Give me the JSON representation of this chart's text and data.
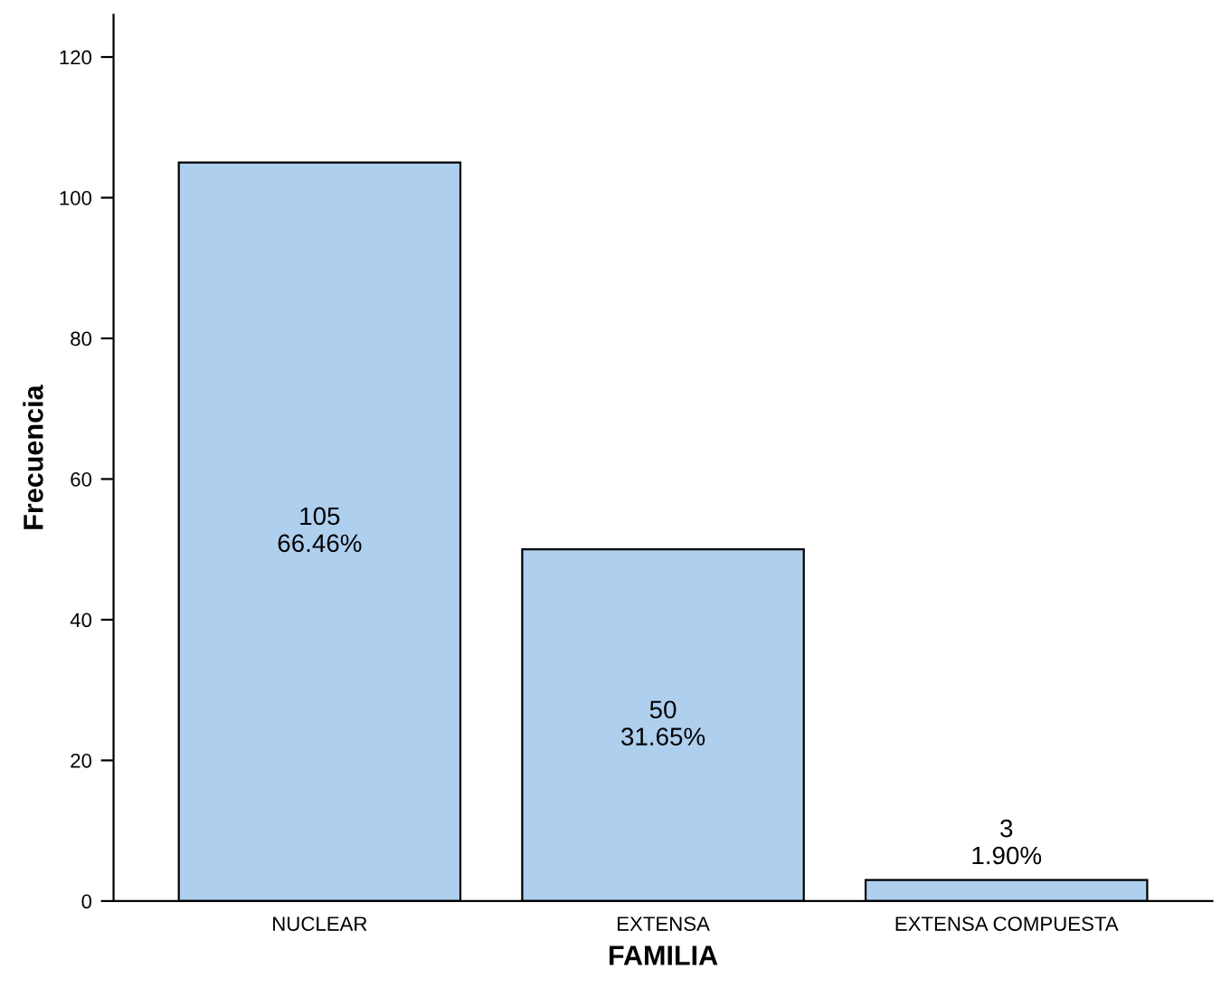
{
  "chart_data": {
    "type": "bar",
    "xlabel": "FAMILIA",
    "ylabel": "Frecuencia",
    "categories": [
      "NUCLEAR",
      "EXTENSA",
      "EXTENSA COMPUESTA"
    ],
    "values": [
      105,
      50,
      3
    ],
    "value_labels": [
      "105\n66.46%",
      "50\n31.65%",
      "3\n1.90%"
    ],
    "color": "#aecfee",
    "ylim": [
      0,
      126
    ],
    "yticks": [
      0,
      20,
      40,
      60,
      80,
      100,
      120
    ],
    "grid": false,
    "legend": false
  }
}
